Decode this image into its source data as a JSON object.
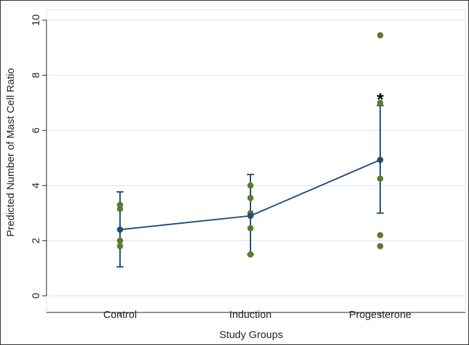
{
  "chart_data": {
    "type": "scatter",
    "title": "",
    "xlabel": "Study Groups",
    "ylabel": "Predicted Number of Mast Cell Ratio",
    "categories": [
      "Control",
      "Induction",
      "Progesterone"
    ],
    "ylim": [
      0,
      10
    ],
    "yticks": [
      0,
      2,
      4,
      6,
      8,
      10
    ],
    "grid": "horizontal",
    "series": [
      {
        "kind": "mean-ci",
        "color": "#1f4e79",
        "values": [
          2.4,
          2.9,
          4.93
        ],
        "ci_low": [
          1.05,
          1.5,
          3.0
        ],
        "ci_high": [
          3.77,
          4.4,
          6.9
        ]
      },
      {
        "kind": "points",
        "color": "#5d7a2e",
        "points": [
          [
            3.3,
            3.15,
            2.0,
            1.8
          ],
          [
            4.0,
            3.55,
            3.0,
            2.45,
            1.5
          ],
          [
            9.45,
            7.0,
            4.25,
            2.2,
            1.8
          ]
        ]
      }
    ],
    "annotations": [
      {
        "text": "*",
        "category": "Progesterone",
        "y": 7.3
      }
    ]
  }
}
